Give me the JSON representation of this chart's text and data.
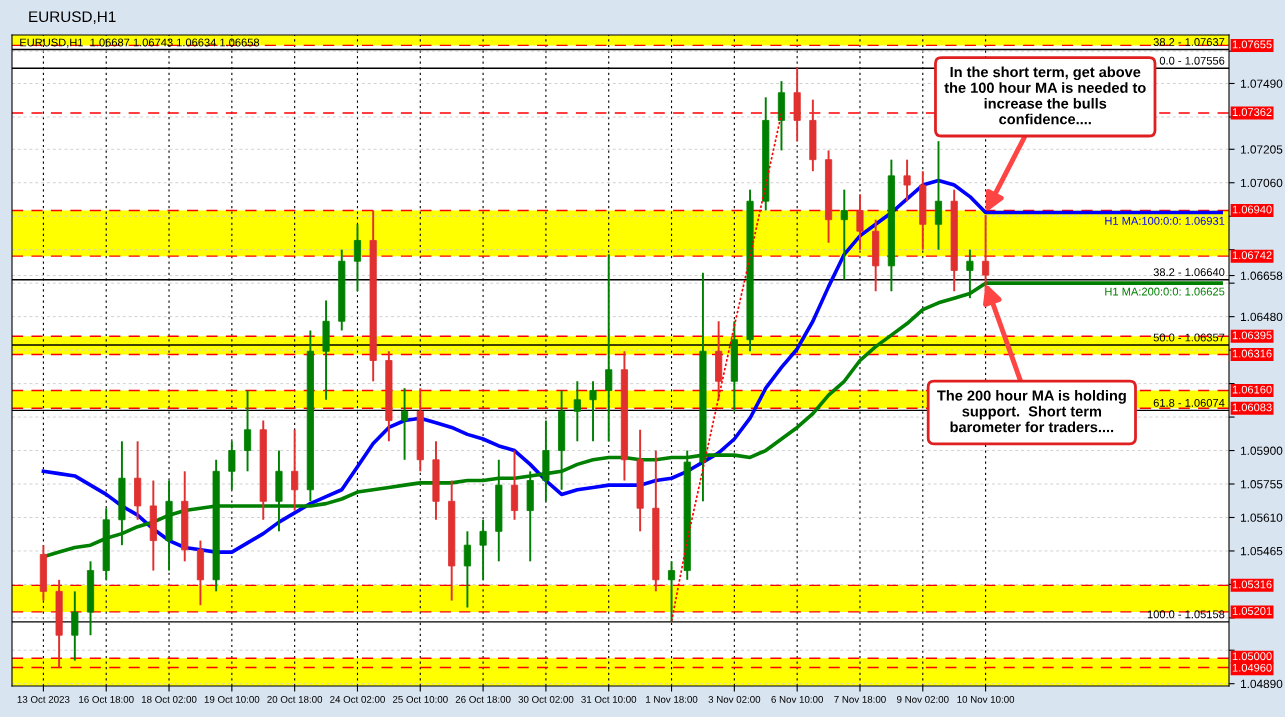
{
  "chart_data": {
    "type": "candlestick",
    "title": "EURUSD,H1",
    "subtitle": "EURUSD,H1  1.06687 1.06743 1.06634 1.06658",
    "categories": [
      "13 Oct 2023",
      null,
      null,
      null,
      "16 Oct 18:00",
      null,
      null,
      null,
      "18 Oct 02:00",
      null,
      null,
      null,
      "19 Oct 10:00",
      null,
      null,
      null,
      "20 Oct 18:00",
      null,
      null,
      null,
      "24 Oct 02:00",
      null,
      null,
      null,
      "25 Oct 10:00",
      null,
      null,
      null,
      "26 Oct 18:00",
      null,
      null,
      null,
      "30 Oct 02:00",
      null,
      null,
      null,
      "31 Oct 10:00",
      null,
      null,
      null,
      "1 Nov 18:00",
      null,
      null,
      null,
      "3 Nov 02:00",
      null,
      null,
      null,
      "6 Nov 10:00",
      null,
      null,
      null,
      "7 Nov 18:00",
      null,
      null,
      null,
      "9 Nov 02:00",
      null,
      null,
      null,
      "10 Nov 10:00",
      null,
      null,
      null,
      null,
      null,
      null,
      null,
      null,
      null,
      null,
      null,
      null,
      null,
      null,
      null
    ],
    "ohlc": [
      [
        1.0545,
        1.0549,
        1.0525,
        1.0529
      ],
      [
        1.0529,
        1.0534,
        1.0496,
        1.051
      ],
      [
        1.051,
        1.0529,
        1.0499,
        1.052
      ],
      [
        1.052,
        1.0542,
        1.051,
        1.0538
      ],
      [
        1.0538,
        1.0565,
        1.0534,
        1.056
      ],
      [
        1.056,
        1.0594,
        1.0549,
        1.0578
      ],
      [
        1.0578,
        1.0594,
        1.056,
        1.0566
      ],
      [
        1.0566,
        1.0577,
        1.0538,
        1.0551
      ],
      [
        1.0551,
        1.0577,
        1.0538,
        1.0568
      ],
      [
        1.0568,
        1.0581,
        1.0542,
        1.0547
      ],
      [
        1.0547,
        1.0551,
        1.0523,
        1.0534
      ],
      [
        1.0534,
        1.0586,
        1.0529,
        1.0581
      ],
      [
        1.0581,
        1.0594,
        1.0573,
        1.059
      ],
      [
        1.059,
        1.0616,
        1.0581,
        1.0599
      ],
      [
        1.0599,
        1.0603,
        1.056,
        1.0568
      ],
      [
        1.0568,
        1.059,
        1.0555,
        1.0581
      ],
      [
        1.0581,
        1.0599,
        1.0564,
        1.0573
      ],
      [
        1.0573,
        1.0642,
        1.0568,
        1.0633
      ],
      [
        1.0633,
        1.0655,
        1.0612,
        1.0646
      ],
      [
        1.0646,
        1.0677,
        1.0642,
        1.0672
      ],
      [
        1.0672,
        1.0688,
        1.0659,
        1.0681
      ],
      [
        1.0681,
        1.0694,
        1.062,
        1.0629
      ],
      [
        1.0629,
        1.0633,
        1.0594,
        1.0603
      ],
      [
        1.0603,
        1.0617,
        1.0586,
        1.0607
      ],
      [
        1.0607,
        1.0617,
        1.0581,
        1.0586
      ],
      [
        1.0586,
        1.0594,
        1.056,
        1.0568
      ],
      [
        1.0568,
        1.0577,
        1.0525,
        1.054
      ],
      [
        1.054,
        1.0555,
        1.0522,
        1.0549
      ],
      [
        1.0549,
        1.056,
        1.0534,
        1.0555
      ],
      [
        1.0555,
        1.0586,
        1.0542,
        1.0575
      ],
      [
        1.0575,
        1.059,
        1.056,
        1.0564
      ],
      [
        1.0564,
        1.0581,
        1.0542,
        1.0577
      ],
      [
        1.0577,
        1.0603,
        1.0568,
        1.059
      ],
      [
        1.059,
        1.0616,
        1.0573,
        1.0607
      ],
      [
        1.0607,
        1.062,
        1.0594,
        1.0612
      ],
      [
        1.0612,
        1.062,
        1.0594,
        1.0616
      ],
      [
        1.0616,
        1.0675,
        1.0594,
        1.0625
      ],
      [
        1.0625,
        1.0633,
        1.0577,
        1.0586
      ],
      [
        1.0586,
        1.0599,
        1.0555,
        1.0565
      ],
      [
        1.0565,
        1.059,
        1.0529,
        1.0534
      ],
      [
        1.0534,
        1.0542,
        1.0516,
        1.0538
      ],
      [
        1.0538,
        1.059,
        1.0534,
        1.0585
      ],
      [
        1.0585,
        1.0667,
        1.0568,
        1.0633
      ],
      [
        1.0633,
        1.0646,
        1.0612,
        1.062
      ],
      [
        1.062,
        1.0646,
        1.0607,
        1.0638
      ],
      [
        1.0638,
        1.0703,
        1.0633,
        1.0698
      ],
      [
        1.0698,
        1.0743,
        1.0694,
        1.0733
      ],
      [
        1.0733,
        1.075,
        1.072,
        1.0745
      ],
      [
        1.0745,
        1.0756,
        1.0724,
        1.0733
      ],
      [
        1.0733,
        1.0742,
        1.0711,
        1.0716
      ],
      [
        1.0716,
        1.072,
        1.068,
        1.069
      ],
      [
        1.069,
        1.0703,
        1.0664,
        1.0694
      ],
      [
        1.0694,
        1.0701,
        1.0677,
        1.0685
      ],
      [
        1.0685,
        1.069,
        1.0659,
        1.067
      ],
      [
        1.067,
        1.0716,
        1.0659,
        1.0709
      ],
      [
        1.0709,
        1.0716,
        1.0698,
        1.0705
      ],
      [
        1.0705,
        1.0711,
        1.0677,
        1.0688
      ],
      [
        1.0688,
        1.0724,
        1.0677,
        1.0698
      ],
      [
        1.0698,
        1.0703,
        1.0659,
        1.0668
      ],
      [
        1.0668,
        1.0677,
        1.0656,
        1.0672
      ],
      [
        1.0672,
        1.0692,
        1.0659,
        1.0666
      ],
      null,
      null,
      null,
      null,
      null,
      null,
      null,
      null,
      null,
      null,
      null,
      null,
      null,
      null,
      null
    ],
    "colors": [
      "#e03030",
      "#e03030",
      "#008000",
      "#008000",
      "#008000",
      "#008000",
      "#e03030",
      "#e03030",
      "#008000",
      "#e03030",
      "#e03030",
      "#008000",
      "#008000",
      "#008000",
      "#e03030",
      "#008000",
      "#e03030",
      "#008000",
      "#008000",
      "#008000",
      "#008000",
      "#e03030",
      "#e03030",
      "#008000",
      "#e03030",
      "#e03030",
      "#e03030",
      "#008000",
      "#008000",
      "#008000",
      "#e03030",
      "#008000",
      "#008000",
      "#008000",
      "#008000",
      "#008000",
      "#008000",
      "#e03030",
      "#e03030",
      "#e03030",
      "#008000",
      "#008000",
      "#008000",
      "#e03030",
      "#008000",
      "#008000",
      "#008000",
      "#008000",
      "#e03030",
      "#e03030",
      "#e03030",
      "#008000",
      "#e03030",
      "#e03030",
      "#008000",
      "#e03030",
      "#e03030",
      "#008000",
      "#e03030",
      "#008000",
      "#e03030",
      null,
      null,
      null,
      null,
      null,
      null,
      null,
      null,
      null,
      null,
      null,
      null,
      null,
      null,
      null
    ],
    "series": [
      {
        "type": "line",
        "name": "H1 MA:100:0:0: 1.06931",
        "color": "#0000ff",
        "values": [
          1.0581,
          1.058,
          1.0579,
          1.0575,
          1.0571,
          1.0566,
          1.0562,
          1.0556,
          1.0551,
          1.0548,
          1.0547,
          1.0546,
          1.0546,
          1.055,
          1.0554,
          1.0559,
          1.0563,
          1.0567,
          1.057,
          1.0573,
          1.0583,
          1.0593,
          1.06,
          1.0603,
          1.0604,
          1.0602,
          1.06,
          1.0597,
          1.0595,
          1.0592,
          1.059,
          1.0584,
          1.0577,
          1.0571,
          1.0573,
          1.0574,
          1.0575,
          1.0575,
          1.0575,
          1.0577,
          1.0578,
          1.0581,
          1.0585,
          1.0589,
          1.0595,
          1.0604,
          1.0617,
          1.0626,
          1.0634,
          1.0646,
          1.0661,
          1.0675,
          1.0683,
          1.0688,
          1.0693,
          1.0699,
          1.0705,
          1.0707,
          1.0705,
          1.07,
          1.06931,
          1.06931,
          1.06931,
          1.06931,
          1.06931,
          1.06931,
          1.06931,
          1.06931,
          1.06931,
          1.06931,
          1.06931,
          1.06931,
          1.06931,
          1.06931,
          1.06931,
          1.06931
        ]
      },
      {
        "type": "line",
        "name": "H1 MA:200:0:0: 1.06625",
        "color": "#008000",
        "values": [
          1.0544,
          1.0546,
          1.0548,
          1.0549,
          1.0552,
          1.0554,
          1.0557,
          1.0559,
          1.0562,
          1.0564,
          1.0565,
          1.0566,
          1.0566,
          1.0566,
          1.0566,
          1.0566,
          1.0566,
          1.0566,
          1.0567,
          1.0569,
          1.0572,
          1.0573,
          1.0574,
          1.0575,
          1.0576,
          1.0576,
          1.0576,
          1.0577,
          1.0577,
          1.0578,
          1.0578,
          1.0579,
          1.058,
          1.0581,
          1.0584,
          1.0586,
          1.0587,
          1.0587,
          1.0586,
          1.0586,
          1.0587,
          1.0587,
          1.0588,
          1.0588,
          1.0588,
          1.0587,
          1.059,
          1.0595,
          1.06,
          1.0606,
          1.0614,
          1.062,
          1.0629,
          1.0635,
          1.064,
          1.0645,
          1.0651,
          1.0654,
          1.0656,
          1.0658,
          1.06625,
          1.06625,
          1.06625,
          1.06625,
          1.06625,
          1.06625,
          1.06625,
          1.06625,
          1.06625,
          1.06625,
          1.06625,
          1.06625,
          1.06625,
          1.06625,
          1.06625,
          1.06625
        ]
      },
      {
        "type": "line",
        "color": "#ff0000",
        "line_style": "dotted",
        "values": [
          null,
          null,
          null,
          null,
          null,
          null,
          null,
          null,
          null,
          null,
          null,
          null,
          null,
          null,
          null,
          null,
          null,
          null,
          null,
          null,
          null,
          null,
          null,
          null,
          null,
          null,
          null,
          null,
          null,
          null,
          null,
          null,
          null,
          null,
          null,
          null,
          null,
          null,
          null,
          null,
          1.0516,
          1.0551,
          1.0582,
          1.0613,
          1.0644,
          1.0674,
          1.0705,
          1.0736,
          null,
          null,
          null,
          null,
          null,
          null,
          null,
          null,
          null,
          null,
          null,
          null,
          null,
          null,
          null,
          null,
          null,
          null,
          null,
          null,
          null,
          null,
          null,
          null,
          null,
          null,
          null,
          null
        ]
      }
    ],
    "ylim": [
      1.0488,
      1.077
    ],
    "yticks": [
      {
        "value": 1.0763,
        "label": null
      },
      {
        "value": 1.0749,
        "label": "1.07490"
      },
      {
        "value": 1.07345,
        "label": null
      },
      {
        "value": 1.07205,
        "label": "1.07205"
      },
      {
        "value": 1.0706,
        "label": "1.07060"
      },
      {
        "value": 1.06915,
        "label": null
      },
      {
        "value": 1.0677,
        "label": null
      },
      {
        "value": 1.06658,
        "label": "1.06658"
      },
      {
        "value": 1.06625,
        "label": null
      },
      {
        "value": 1.0648,
        "label": "1.06480"
      },
      {
        "value": 1.06335,
        "label": null
      },
      {
        "value": 1.0619,
        "label": null
      },
      {
        "value": 1.06045,
        "label": null
      },
      {
        "value": 1.059,
        "label": "1.05900"
      },
      {
        "value": 1.05755,
        "label": "1.05755"
      },
      {
        "value": 1.0561,
        "label": "1.05610"
      },
      {
        "value": 1.05465,
        "label": "1.05465"
      },
      {
        "value": 1.0532,
        "label": null
      },
      {
        "value": 1.05175,
        "label": null
      },
      {
        "value": 1.05035,
        "label": null
      },
      {
        "value": 1.0489,
        "label": "1.04890"
      }
    ],
    "grid": true,
    "bands": [
      {
        "axis": "y",
        "from": 1.07655,
        "to": 1.077,
        "color": "#ffff00"
      },
      {
        "axis": "y",
        "from": 1.06742,
        "to": 1.0694,
        "color": "#ffff00"
      },
      {
        "axis": "y",
        "from": 1.06316,
        "to": 1.06395,
        "color": "#ffff00"
      },
      {
        "axis": "y",
        "from": 1.06083,
        "to": 1.0616,
        "color": "#ffff00"
      },
      {
        "axis": "y",
        "from": 1.05201,
        "to": 1.05316,
        "color": "#ffff00"
      },
      {
        "axis": "y",
        "from": 1.0488,
        "to": 1.05,
        "color": "#ffff00"
      }
    ],
    "ref_lines": [
      {
        "axis": "y",
        "value": 1.07655,
        "label": "1.07655",
        "color": "#ff0000",
        "line_style": "dashed"
      },
      {
        "axis": "y",
        "value": 1.07362,
        "label": "1.07362",
        "color": "#ff0000",
        "line_style": "dashed"
      },
      {
        "axis": "y",
        "value": 1.0694,
        "label": "1.06940",
        "color": "#ff0000",
        "line_style": "dashed"
      },
      {
        "axis": "y",
        "value": 1.06742,
        "label": "1.06742",
        "color": "#ff0000",
        "line_style": "dashed"
      },
      {
        "axis": "y",
        "value": 1.06395,
        "label": "1.06395",
        "color": "#ff0000",
        "line_style": "dashed"
      },
      {
        "axis": "y",
        "value": 1.06316,
        "label": "1.06316",
        "color": "#ff0000",
        "line_style": "dashed"
      },
      {
        "axis": "y",
        "value": 1.0616,
        "label": "1.06160",
        "color": "#ff0000",
        "line_style": "dashed"
      },
      {
        "axis": "y",
        "value": 1.06083,
        "label": "1.06083",
        "color": "#ff0000",
        "line_style": "dashed"
      },
      {
        "axis": "y",
        "value": 1.05316,
        "label": "1.05316",
        "color": "#ff0000",
        "line_style": "dashed"
      },
      {
        "axis": "y",
        "value": 1.05201,
        "label": "1.05201",
        "color": "#ff0000",
        "line_style": "dashed"
      },
      {
        "axis": "y",
        "value": 1.05,
        "label": "1.05000",
        "color": "#ff0000",
        "line_style": "dashed"
      },
      {
        "axis": "y",
        "value": 1.0496,
        "label": "1.04960",
        "color": "#ff0000",
        "line_style": "dashed"
      },
      {
        "axis": "y",
        "value": 1.07637,
        "color": "#000000",
        "line_style": "solid"
      },
      {
        "axis": "y",
        "value": 1.07556,
        "color": "#000000",
        "line_style": "solid"
      },
      {
        "axis": "y",
        "value": 1.0664,
        "color": "#000000",
        "line_style": "solid"
      },
      {
        "axis": "y",
        "value": 1.06357,
        "color": "#000000",
        "line_style": "solid"
      },
      {
        "axis": "y",
        "value": 1.06074,
        "color": "#000000",
        "line_style": "solid"
      },
      {
        "axis": "y",
        "value": 1.05158,
        "color": "#000000",
        "line_style": "solid"
      }
    ],
    "annotations": [
      {
        "text": "In the short term, get above\nthe 100 hour MA is needed to\nincrease the bulls\nconfidence....",
        "x": "10 Nov 10:00",
        "y": 1.06931
      },
      {
        "text": "The 200 hour MA is holding\nsupport.  Short term\nbarometer for traders....",
        "x": "10 Nov 10:00",
        "y": 1.06625
      },
      {
        "text": "38.2 - 1.07637",
        "y": 1.07637
      },
      {
        "text": "0.0 - 1.07556",
        "y": 1.07556
      },
      {
        "text": "38.2 - 1.06640",
        "y": 1.0664
      },
      {
        "text": "50.0 - 1.06357",
        "y": 1.06357
      },
      {
        "text": "61.8 - 1.06074",
        "y": 1.06074
      },
      {
        "text": "100.0 - 1.05158",
        "y": 1.05158
      }
    ]
  }
}
